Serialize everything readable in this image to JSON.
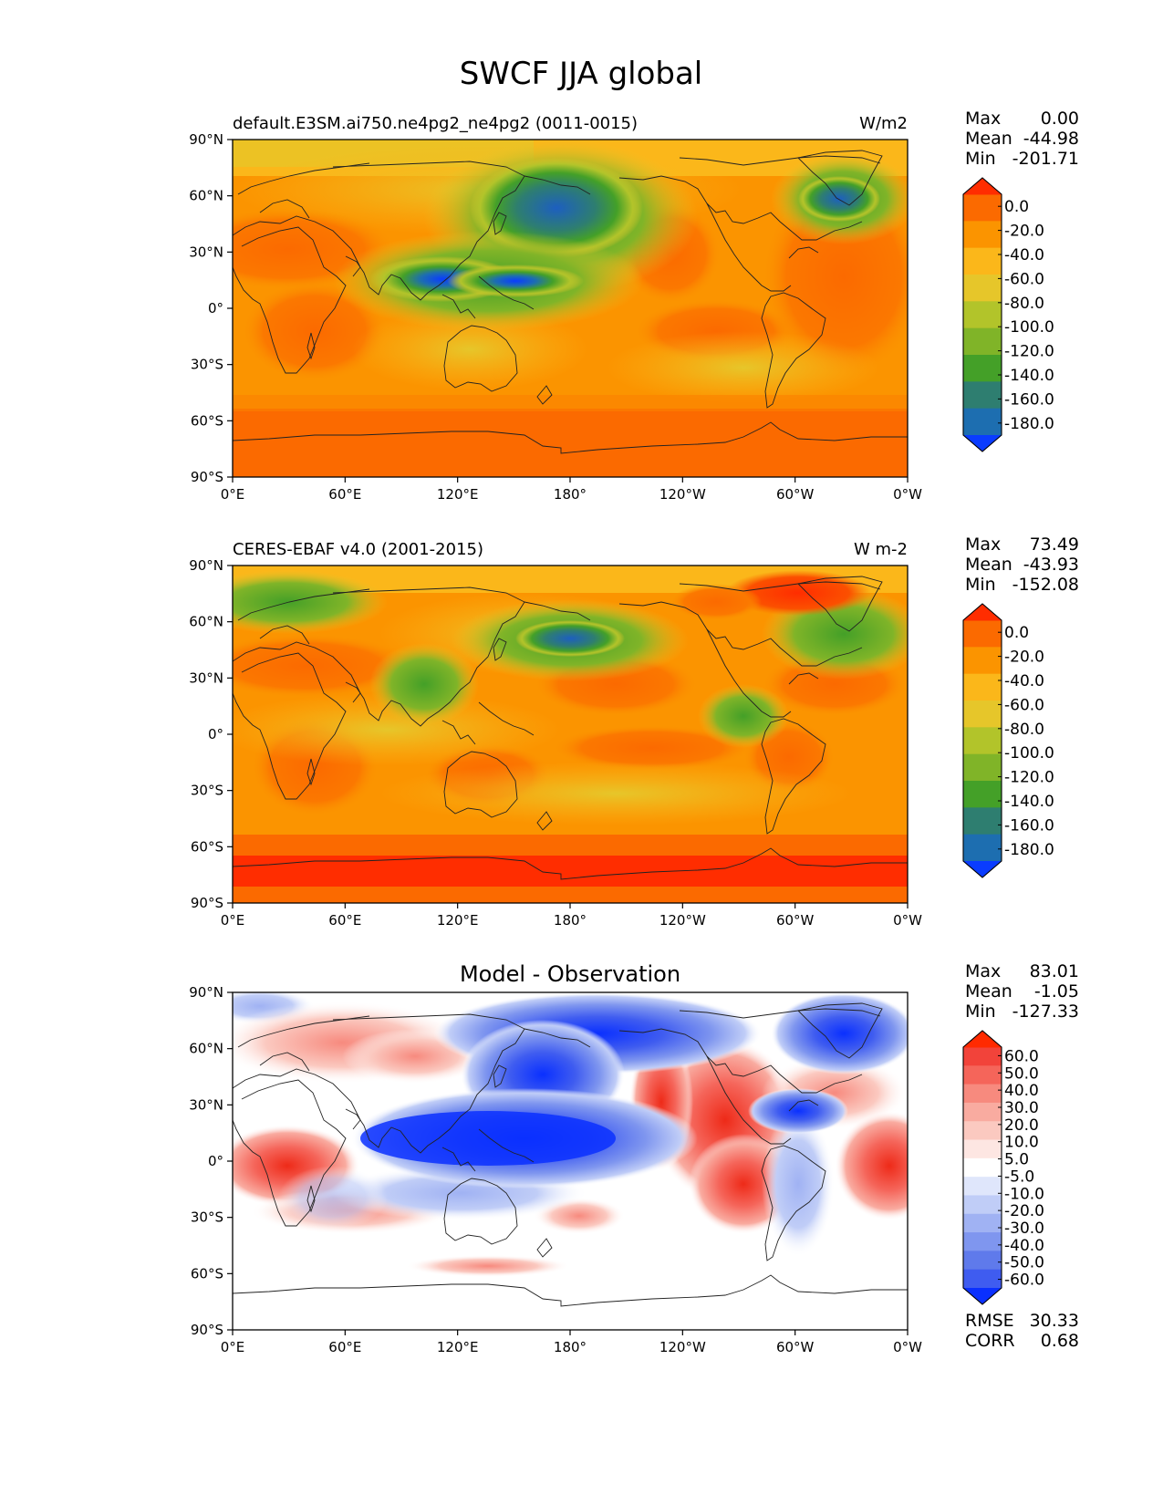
{
  "title": "SWCF JJA global",
  "x_ticks": [
    "0°E",
    "60°E",
    "120°E",
    "180°",
    "120°W",
    "60°W",
    "0°W"
  ],
  "y_ticks": [
    "90°N",
    "60°N",
    "30°N",
    "0°",
    "30°S",
    "60°S",
    "90°S"
  ],
  "panels": [
    {
      "id": "model",
      "left_title": "default.E3SM.ai750.ne4pg2_ne4pg2 (0011-0015)",
      "center_title": "",
      "units": "W/m2",
      "stats": [
        {
          "label": "Max",
          "value": "0.00"
        },
        {
          "label": "Mean",
          "value": "-44.98"
        },
        {
          "label": "Min",
          "value": "-201.71"
        }
      ],
      "colorbar_labels": [
        "0.0",
        "-20.0",
        "-40.0",
        "-60.0",
        "-80.0",
        "-100.0",
        "-120.0",
        "-140.0",
        "-160.0",
        "-180.0"
      ],
      "colorbar_colors": [
        "#ff2d00",
        "#fb6a00",
        "#fb9400",
        "#fbb71a",
        "#e6c62a",
        "#b2c42a",
        "#80b428",
        "#44a028",
        "#2e7e70",
        "#1d6eb0",
        "#0a3cff"
      ]
    },
    {
      "id": "obs",
      "left_title": "CERES-EBAF v4.0 (2001-2015)",
      "center_title": "",
      "units": "W m-2",
      "stats": [
        {
          "label": "Max",
          "value": "73.49"
        },
        {
          "label": "Mean",
          "value": "-43.93"
        },
        {
          "label": "Min",
          "value": "-152.08"
        }
      ],
      "colorbar_labels": [
        "0.0",
        "-20.0",
        "-40.0",
        "-60.0",
        "-80.0",
        "-100.0",
        "-120.0",
        "-140.0",
        "-160.0",
        "-180.0"
      ],
      "colorbar_colors": [
        "#ff2d00",
        "#fb6a00",
        "#fb9400",
        "#fbb71a",
        "#e6c62a",
        "#b2c42a",
        "#80b428",
        "#44a028",
        "#2e7e70",
        "#1d6eb0",
        "#0a3cff"
      ]
    },
    {
      "id": "diff",
      "left_title": "",
      "center_title": "Model - Observation",
      "units": "",
      "stats": [
        {
          "label": "Max",
          "value": "83.01"
        },
        {
          "label": "Mean",
          "value": "-1.05"
        },
        {
          "label": "Min",
          "value": "-127.33"
        }
      ],
      "extra_stats": [
        {
          "label": "RMSE",
          "value": "30.33"
        },
        {
          "label": "CORR",
          "value": "0.68"
        }
      ],
      "colorbar_labels": [
        "60.0",
        "50.0",
        "40.0",
        "30.0",
        "20.0",
        "10.0",
        "5.0",
        "-5.0",
        "-10.0",
        "-20.0",
        "-30.0",
        "-40.0",
        "-50.0",
        "-60.0"
      ],
      "colorbar_colors": [
        "#ff2a00",
        "#f2433a",
        "#f5655a",
        "#f78a7e",
        "#f9aba0",
        "#fbc9c0",
        "#fde6e2",
        "#ffffff",
        "#dfe6fb",
        "#c0cdf7",
        "#a0b2f3",
        "#7f96ef",
        "#5f7aeb",
        "#3f5cf0",
        "#0a30ff"
      ]
    }
  ]
}
